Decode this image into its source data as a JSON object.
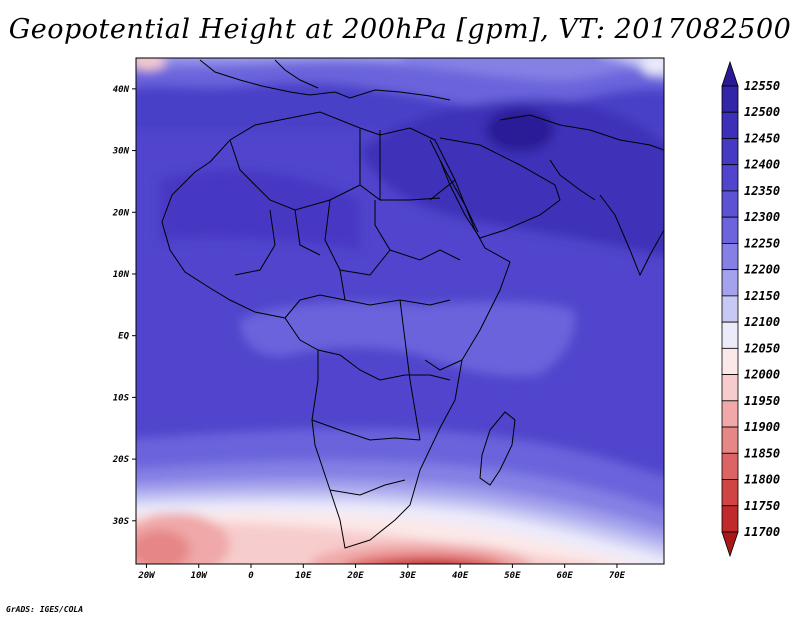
{
  "title": "Geopotential Height at 200hPa [gpm], VT: 2017082500",
  "credit": "GrADS: IGES/COLA",
  "map": {
    "lon_range": [
      -22,
      79
    ],
    "lat_range": [
      -37,
      45
    ],
    "lon_ticks": [
      {
        "value": -20,
        "label": "20W"
      },
      {
        "value": -10,
        "label": "10W"
      },
      {
        "value": 0,
        "label": "0"
      },
      {
        "value": 10,
        "label": "10E"
      },
      {
        "value": 20,
        "label": "20E"
      },
      {
        "value": 30,
        "label": "30E"
      },
      {
        "value": 40,
        "label": "40E"
      },
      {
        "value": 50,
        "label": "50E"
      },
      {
        "value": 60,
        "label": "60E"
      },
      {
        "value": 70,
        "label": "70E"
      }
    ],
    "lat_ticks": [
      {
        "value": 40,
        "label": "40N"
      },
      {
        "value": 30,
        "label": "30N"
      },
      {
        "value": 20,
        "label": "20N"
      },
      {
        "value": 10,
        "label": "10N"
      },
      {
        "value": 0,
        "label": "EQ"
      },
      {
        "value": -10,
        "label": "10S"
      },
      {
        "value": -20,
        "label": "20S"
      },
      {
        "value": -30,
        "label": "30S"
      }
    ]
  },
  "colorbar": {
    "levels": [
      "12550",
      "12500",
      "12450",
      "12400",
      "12350",
      "12300",
      "12250",
      "12200",
      "12150",
      "12100",
      "12050",
      "12000",
      "11950",
      "11900",
      "11850",
      "11800",
      "11750",
      "11700"
    ],
    "colors": [
      "#2a1a96",
      "#3325a8",
      "#3c30b8",
      "#4639c4",
      "#5045cc",
      "#5b52d4",
      "#6b64dc",
      "#8480e4",
      "#a4a2ec",
      "#c8c8f4",
      "#ecebfa",
      "#fce8e8",
      "#f7cccc",
      "#f0a8a8",
      "#e68686",
      "#dc6464",
      "#d04444",
      "#c02a2a",
      "#a81818"
    ]
  }
}
